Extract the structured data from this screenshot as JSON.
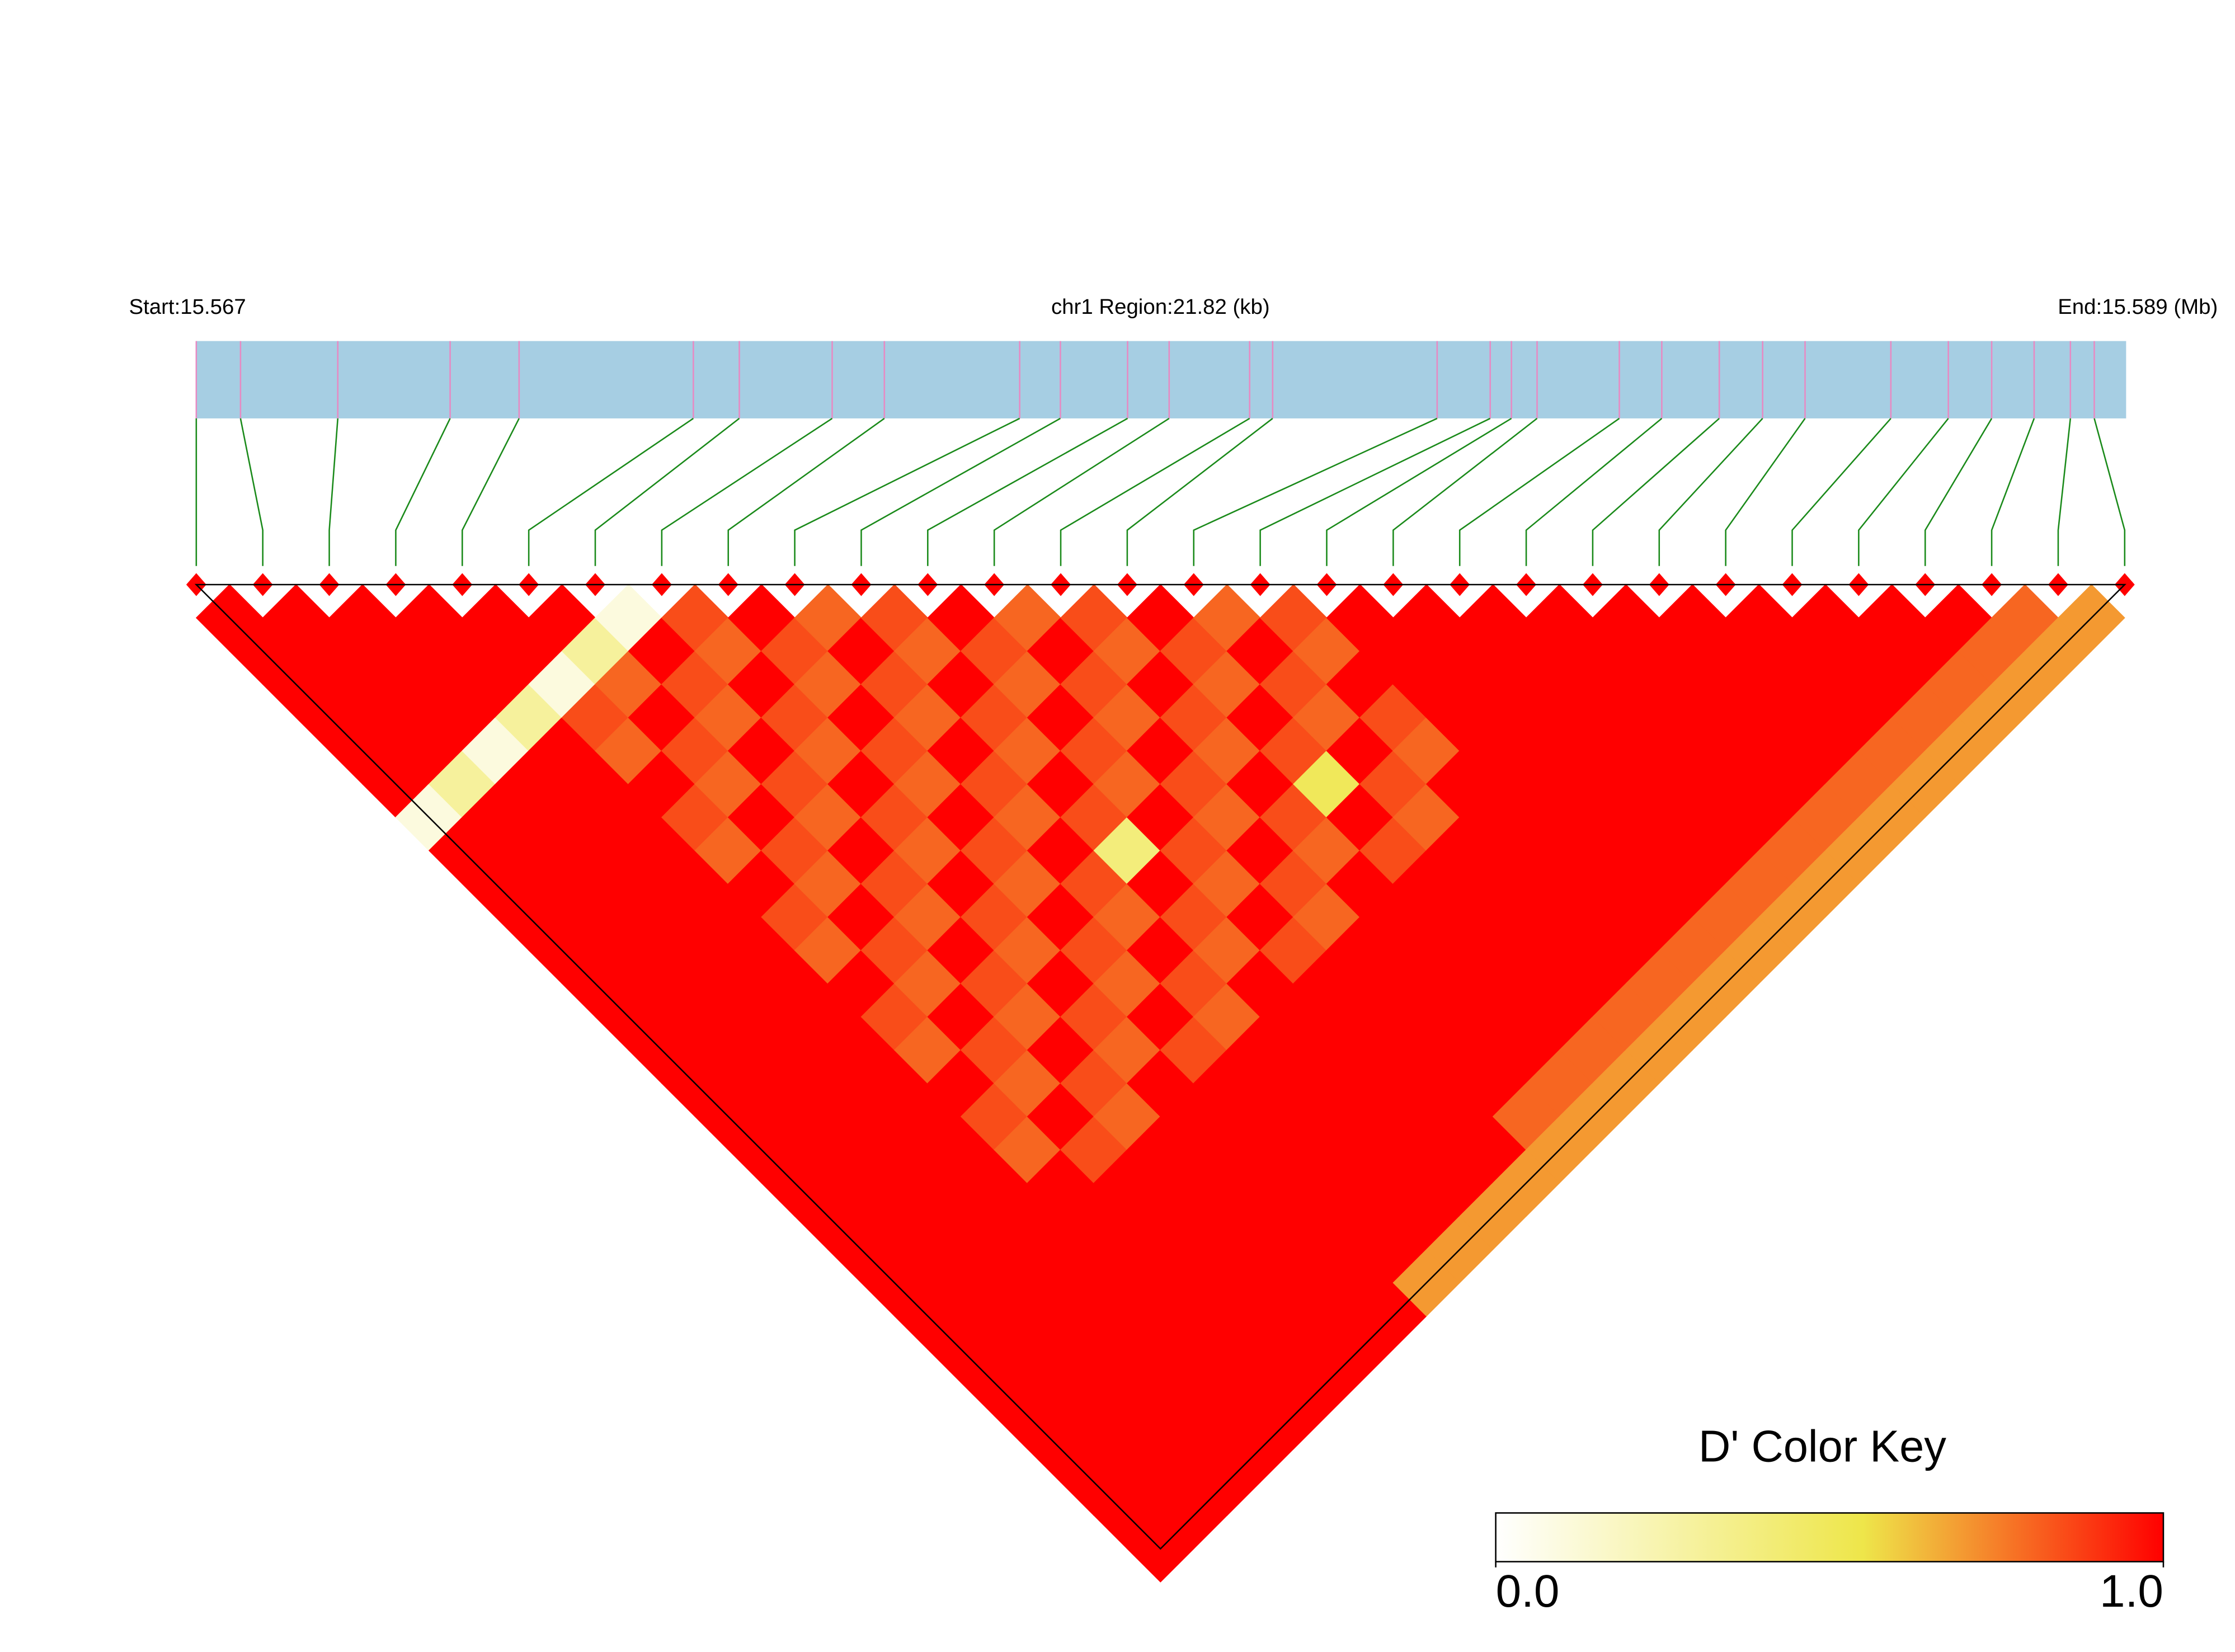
{
  "chart_data": {
    "type": "ld_heatmap",
    "start_label": "Start:15.567",
    "region_label": "chr1 Region:21.82 (kb)",
    "end_label": "End:15.589 (Mb)",
    "xlim": [
      15.56718,
      15.589
    ],
    "positions": [
      15.56718,
      15.56768,
      15.56878,
      15.57005,
      15.57083,
      15.5728,
      15.57332,
      15.57437,
      15.57496,
      15.57649,
      15.57695,
      15.57771,
      15.57818,
      15.57909,
      15.57935,
      15.58121,
      15.58181,
      15.58205,
      15.58234,
      15.58327,
      15.58375,
      15.5844,
      15.58489,
      15.58537,
      15.58634,
      15.58699,
      15.58748,
      15.58796,
      15.58837,
      15.58864
    ],
    "ld": [
      [
        1,
        1,
        1,
        1,
        1,
        1,
        0.1,
        1,
        1,
        1,
        1,
        1,
        1,
        1,
        1,
        1,
        1,
        1,
        1,
        1,
        1,
        1,
        1,
        1,
        1,
        1,
        1,
        1,
        1
      ],
      [
        1,
        1,
        1,
        1,
        1,
        0.3,
        1,
        1,
        1,
        1,
        1,
        1,
        1,
        1,
        1,
        1,
        1,
        1,
        1,
        1,
        1,
        1,
        1,
        1,
        1,
        1,
        1,
        1
      ],
      [
        1,
        1,
        1,
        1,
        0.1,
        1,
        1,
        1,
        1,
        1,
        1,
        1,
        1,
        1,
        1,
        1,
        1,
        1,
        1,
        1,
        1,
        1,
        1,
        1,
        1,
        1,
        1
      ],
      [
        1,
        1,
        1,
        0.3,
        1,
        1,
        1,
        1,
        1,
        1,
        1,
        1,
        1,
        1,
        1,
        1,
        1,
        1,
        1,
        1,
        1,
        1,
        1,
        1,
        1,
        1
      ],
      [
        1,
        1,
        0.1,
        0.85,
        0.8,
        1,
        0.85,
        0.8,
        1,
        0.85,
        0.8,
        1,
        0.85,
        0.8,
        1,
        0.85,
        0.8,
        1,
        1,
        1,
        1,
        1,
        1,
        1,
        1
      ],
      [
        1,
        0.3,
        0.8,
        1,
        0.85,
        0.8,
        1,
        0.85,
        0.8,
        1,
        0.85,
        0.8,
        1,
        0.85,
        0.8,
        1,
        0.85,
        1,
        1,
        1,
        1,
        1,
        1,
        1
      ],
      [
        0.1,
        1,
        0.85,
        0.8,
        1,
        0.85,
        0.8,
        1,
        0.85,
        0.8,
        1,
        0.85,
        0.8,
        1,
        0.85,
        0.8,
        1,
        1,
        1,
        1,
        1,
        1,
        1
      ],
      [
        0.85,
        0.8,
        1,
        0.85,
        0.8,
        1,
        0.85,
        0.8,
        1,
        0.85,
        0.8,
        1,
        0.85,
        0.8,
        1,
        1,
        1,
        1,
        1,
        1,
        1,
        1
      ],
      [
        1,
        0.85,
        0.8,
        1,
        0.85,
        0.8,
        1,
        0.85,
        0.8,
        1,
        0.85,
        0.8,
        1,
        0.85,
        1,
        1,
        1,
        1,
        1,
        1,
        0.7
      ],
      [
        0.8,
        1,
        0.85,
        0.8,
        1,
        0.85,
        0.8,
        1,
        0.85,
        0.8,
        1,
        0.85,
        0.8,
        1,
        1,
        1,
        1,
        1,
        1,
        0.7
      ],
      [
        0.85,
        0.8,
        1,
        0.85,
        0.8,
        1,
        0.85,
        0.4,
        1,
        0.85,
        0.8,
        1,
        1,
        1,
        1,
        1,
        1,
        1,
        0.7
      ],
      [
        1,
        0.85,
        0.8,
        1,
        0.85,
        0.8,
        1,
        0.85,
        0.8,
        1,
        0.85,
        1,
        1,
        1,
        1,
        1,
        1,
        0.7
      ],
      [
        0.8,
        1,
        0.85,
        0.8,
        1,
        0.85,
        0.8,
        1,
        0.85,
        0.8,
        1,
        1,
        1,
        1,
        1,
        0.8,
        0.7
      ],
      [
        0.85,
        0.8,
        1,
        0.85,
        0.8,
        1,
        0.85,
        0.8,
        1,
        1,
        1,
        1,
        1,
        1,
        0.8,
        0.7
      ],
      [
        1,
        0.85,
        0.8,
        1,
        0.85,
        0.5,
        1,
        0.85,
        1,
        1,
        1,
        1,
        1,
        0.8,
        0.7
      ],
      [
        0.8,
        1,
        0.85,
        0.8,
        1,
        0.85,
        0.8,
        1,
        1,
        1,
        1,
        1,
        0.8,
        0.7
      ],
      [
        0.85,
        0.8,
        1,
        0.85,
        0.8,
        1,
        1,
        1,
        1,
        1,
        1,
        0.8,
        0.7
      ],
      [
        1,
        1,
        1,
        1,
        1,
        1,
        1,
        1,
        1,
        1,
        0.8,
        0.7
      ],
      [
        1,
        1,
        1,
        1,
        1,
        1,
        1,
        1,
        1,
        0.8,
        0.7
      ],
      [
        1,
        1,
        1,
        1,
        1,
        1,
        1,
        1,
        0.8,
        0.7
      ],
      [
        1,
        1,
        1,
        1,
        1,
        1,
        1,
        0.8,
        0.7
      ],
      [
        1,
        1,
        1,
        1,
        1,
        1,
        0.8,
        0.7
      ],
      [
        1,
        1,
        1,
        1,
        1,
        0.8,
        0.7
      ],
      [
        1,
        1,
        1,
        1,
        0.8,
        0.7
      ],
      [
        1,
        1,
        1,
        0.8,
        0.7
      ],
      [
        1,
        1,
        0.8,
        0.7
      ],
      [
        1,
        0.8,
        0.7
      ],
      [
        0.8,
        0.7
      ],
      [
        0.7
      ]
    ],
    "bar_color": "#a6cee3",
    "snp_line_color": "#e78ac3",
    "connector_color": "#1a8a1a",
    "colormap": {
      "stops": [
        0,
        0.55,
        1
      ],
      "colors": [
        "#ffffff",
        "#eee64a",
        "#ff0000"
      ]
    },
    "legend_title": "D' Color Key",
    "legend_ticks": [
      {
        "value": 0,
        "label": "0.0"
      },
      {
        "value": 1,
        "label": "1.0"
      }
    ]
  }
}
